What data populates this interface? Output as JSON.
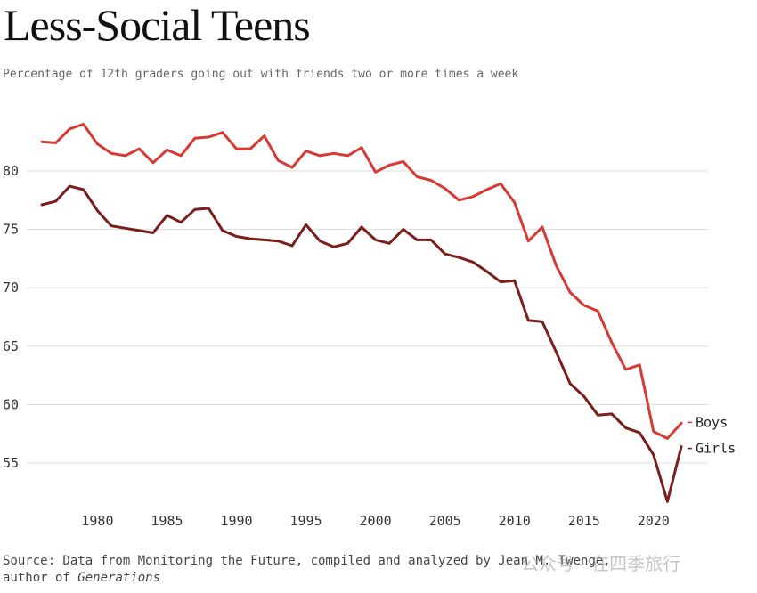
{
  "chart_data": {
    "type": "line",
    "title": "Less-Social Teens",
    "subtitle": "Percentage of 12th graders going out with friends two or more times a week",
    "xlabel": "",
    "ylabel": "",
    "xlim": [
      1976,
      2022
    ],
    "ylim": [
      51,
      85
    ],
    "x_ticks": [
      "1980",
      "1985",
      "1990",
      "1995",
      "2000",
      "2005",
      "2010",
      "2015",
      "2020"
    ],
    "y_ticks": [
      "55",
      "60",
      "65",
      "70",
      "75",
      "80"
    ],
    "grid": true,
    "legend": "direct-labels-right",
    "x": [
      1976,
      1977,
      1978,
      1979,
      1980,
      1981,
      1982,
      1983,
      1984,
      1985,
      1986,
      1987,
      1988,
      1989,
      1990,
      1991,
      1992,
      1993,
      1994,
      1995,
      1996,
      1997,
      1998,
      1999,
      2000,
      2001,
      2002,
      2003,
      2004,
      2005,
      2006,
      2007,
      2008,
      2009,
      2010,
      2011,
      2012,
      2013,
      2014,
      2015,
      2016,
      2017,
      2018,
      2019,
      2020,
      2021,
      2022
    ],
    "series": [
      {
        "name": "Boys",
        "color": "#d63a32",
        "values": [
          82.5,
          82.4,
          83.6,
          84.0,
          82.3,
          81.5,
          81.3,
          81.9,
          80.7,
          81.8,
          81.3,
          82.8,
          82.9,
          83.3,
          81.9,
          81.9,
          83.0,
          80.9,
          80.3,
          81.7,
          81.3,
          81.5,
          81.3,
          82.0,
          79.9,
          80.5,
          80.8,
          79.5,
          79.2,
          78.5,
          77.5,
          77.8,
          78.4,
          78.9,
          77.3,
          74.0,
          75.2,
          71.9,
          69.6,
          68.5,
          68.0,
          65.3,
          63.0,
          63.4,
          57.7,
          57.1,
          58.4
        ]
      },
      {
        "name": "Girls",
        "color": "#7a1f1c",
        "values": [
          77.1,
          77.4,
          78.7,
          78.4,
          76.6,
          75.3,
          75.1,
          74.9,
          74.7,
          76.2,
          75.6,
          76.7,
          76.8,
          74.9,
          74.4,
          74.2,
          74.1,
          74.0,
          73.6,
          75.4,
          74.0,
          73.5,
          73.8,
          75.2,
          74.1,
          73.8,
          75.0,
          74.1,
          74.1,
          72.9,
          72.6,
          72.2,
          71.4,
          70.5,
          70.6,
          67.2,
          67.1,
          64.5,
          61.8,
          60.7,
          59.1,
          59.2,
          58.0,
          57.6,
          55.7,
          51.7,
          56.4
        ]
      }
    ]
  },
  "footer": {
    "source_text": "Source: Data from Monitoring the Future, compiled and analyzed by Jean M. Twenge,",
    "author_prefix": "author of ",
    "author_book": "Generations"
  },
  "watermark": "公众号 · 在四季旅行"
}
